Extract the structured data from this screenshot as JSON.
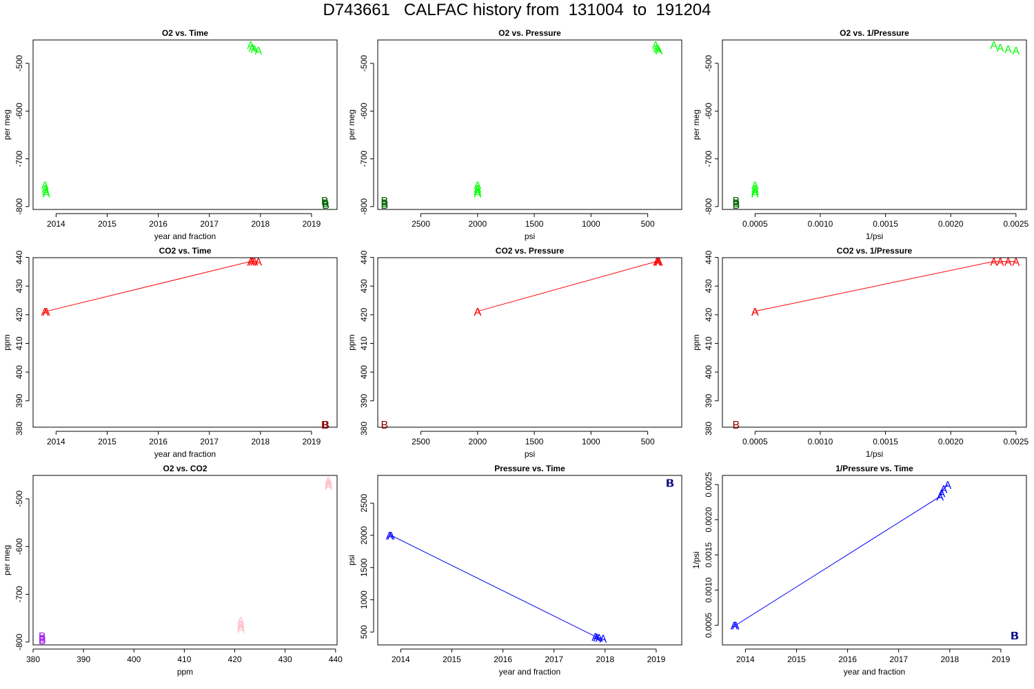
{
  "page": {
    "title": "D743661   CALFAC history from  131004  to  191204"
  },
  "colors": {
    "o2_A": "#00ff00",
    "o2_B": "#006400",
    "co2_A": "#ff0000",
    "co2_B": "#8b0000",
    "o2co2_A": "#ffc0cb",
    "o2co2_B": "#a020f0",
    "p_A": "#0000ff",
    "p_B": "#000080",
    "axis": "#000000"
  },
  "chart_data": [
    {
      "id": "o2-vs-time",
      "type": "scatter",
      "title": "O2 vs. Time",
      "xlabel": "year and fraction",
      "ylabel": "per meg",
      "xlim": [
        2013.55,
        2019.5
      ],
      "ylim": [
        -806,
        -451
      ],
      "xticks": [
        2014,
        2015,
        2016,
        2017,
        2018,
        2019
      ],
      "xtick_labels": [
        "2014",
        "2015",
        "2016",
        "2017",
        "2018",
        "2019"
      ],
      "yticks": [
        -800,
        -700,
        -600,
        -500
      ],
      "ytick_labels": [
        "-800",
        "-700",
        "-600",
        "-500"
      ],
      "series": [
        {
          "marker": "A",
          "color": "#00ff00",
          "connect": false,
          "x": [
            2013.78,
            2013.79,
            2013.8,
            2013.81,
            2017.81,
            2017.84,
            2017.88,
            2017.96
          ],
          "y": [
            -755,
            -762,
            -768,
            -772,
            -461,
            -467,
            -470,
            -473
          ]
        },
        {
          "marker": "B",
          "color": "#006400",
          "connect": false,
          "x": [
            2019.26,
            2019.27,
            2019.28
          ],
          "y": [
            -787,
            -792,
            -796
          ]
        }
      ]
    },
    {
      "id": "o2-vs-pressure",
      "type": "scatter",
      "title": "O2 vs. Pressure",
      "xlabel": "psi",
      "ylabel": "per meg",
      "xlim": [
        2880,
        200
      ],
      "ylim": [
        -806,
        -451
      ],
      "xticks": [
        2500,
        2000,
        1500,
        1000,
        500
      ],
      "xtick_labels": [
        "2500",
        "2000",
        "1500",
        "1000",
        "500"
      ],
      "yticks": [
        -800,
        -700,
        -600,
        -500
      ],
      "ytick_labels": [
        "-800",
        "-700",
        "-600",
        "-500"
      ],
      "series": [
        {
          "marker": "A",
          "color": "#00ff00",
          "connect": false,
          "x": [
            2000,
            2000,
            2000,
            2000,
            430,
            420,
            410,
            400
          ],
          "y": [
            -755,
            -762,
            -768,
            -772,
            -461,
            -467,
            -470,
            -473
          ]
        },
        {
          "marker": "B",
          "color": "#006400",
          "connect": false,
          "x": [
            2820,
            2820,
            2820
          ],
          "y": [
            -787,
            -792,
            -796
          ]
        }
      ]
    },
    {
      "id": "o2-vs-inv-pressure",
      "type": "scatter",
      "title": "O2 vs. 1/Pressure",
      "xlabel": "1/psi",
      "ylabel": "per meg",
      "xlim": [
        0.00025,
        0.00258
      ],
      "ylim": [
        -806,
        -451
      ],
      "xticks": [
        0.0005,
        0.001,
        0.0015,
        0.002,
        0.0025
      ],
      "xtick_labels": [
        "0.0005",
        "0.0010",
        "0.0015",
        "0.0020",
        "0.0025"
      ],
      "yticks": [
        -800,
        -700,
        -600,
        -500
      ],
      "ytick_labels": [
        "-800",
        "-700",
        "-600",
        "-500"
      ],
      "series": [
        {
          "marker": "A",
          "color": "#00ff00",
          "connect": false,
          "x": [
            0.0005,
            0.0005,
            0.0005,
            0.0005,
            0.00233,
            0.00238,
            0.00244,
            0.0025
          ],
          "y": [
            -755,
            -762,
            -768,
            -772,
            -461,
            -467,
            -470,
            -473
          ]
        },
        {
          "marker": "B",
          "color": "#006400",
          "connect": false,
          "x": [
            0.000355,
            0.000355,
            0.000355
          ],
          "y": [
            -787,
            -792,
            -796
          ]
        }
      ]
    },
    {
      "id": "co2-vs-time",
      "type": "line",
      "title": "CO2 vs. Time",
      "xlabel": "year and fraction",
      "ylabel": "ppm",
      "xlim": [
        2013.55,
        2019.5
      ],
      "ylim": [
        380.8,
        439.9
      ],
      "xticks": [
        2014,
        2015,
        2016,
        2017,
        2018,
        2019
      ],
      "xtick_labels": [
        "2014",
        "2015",
        "2016",
        "2017",
        "2018",
        "2019"
      ],
      "yticks": [
        390,
        400,
        410,
        420,
        430,
        440
      ],
      "ytick_labels": [
        "390",
        "400",
        "410",
        "420",
        "430",
        "440"
      ],
      "extra_yticks": [
        {
          "value": 380,
          "label": "380"
        }
      ],
      "series": [
        {
          "marker": "A",
          "color": "#ff0000",
          "connect": true,
          "x": [
            2013.78,
            2013.81,
            2017.81,
            2017.84,
            2017.88,
            2017.96
          ],
          "y": [
            421.2,
            421.2,
            438.6,
            438.6,
            438.6,
            438.6
          ]
        },
        {
          "marker": "B",
          "color": "#8b0000",
          "connect": false,
          "x": [
            2019.26,
            2019.28
          ],
          "y": [
            381.8,
            381.8
          ]
        }
      ]
    },
    {
      "id": "co2-vs-pressure",
      "type": "line",
      "title": "CO2 vs. Pressure",
      "xlabel": "psi",
      "ylabel": "ppm",
      "xlim": [
        2880,
        200
      ],
      "ylim": [
        380.8,
        439.9
      ],
      "xticks": [
        2500,
        2000,
        1500,
        1000,
        500
      ],
      "xtick_labels": [
        "2500",
        "2000",
        "1500",
        "1000",
        "500"
      ],
      "yticks": [
        390,
        400,
        410,
        420,
        430,
        440
      ],
      "ytick_labels": [
        "390",
        "400",
        "410",
        "420",
        "430",
        "440"
      ],
      "extra_yticks": [
        {
          "value": 380,
          "label": "380"
        }
      ],
      "series": [
        {
          "marker": "A",
          "color": "#ff0000",
          "connect": true,
          "x": [
            2000,
            2000,
            420,
            410,
            400
          ],
          "y": [
            421.2,
            421.2,
            438.6,
            438.6,
            438.6
          ]
        },
        {
          "marker": "B",
          "color": "#8b0000",
          "connect": false,
          "x": [
            2820
          ],
          "y": [
            381.8
          ]
        }
      ]
    },
    {
      "id": "co2-vs-inv-pressure",
      "type": "line",
      "title": "CO2 vs. 1/Pressure",
      "xlabel": "1/psi",
      "ylabel": "ppm",
      "xlim": [
        0.00025,
        0.00258
      ],
      "ylim": [
        380.8,
        439.9
      ],
      "xticks": [
        0.0005,
        0.001,
        0.0015,
        0.002,
        0.0025
      ],
      "xtick_labels": [
        "0.0005",
        "0.0010",
        "0.0015",
        "0.0020",
        "0.0025"
      ],
      "yticks": [
        390,
        400,
        410,
        420,
        430,
        440
      ],
      "ytick_labels": [
        "390",
        "400",
        "410",
        "420",
        "430",
        "440"
      ],
      "extra_yticks": [
        {
          "value": 380,
          "label": "380"
        }
      ],
      "series": [
        {
          "marker": "A",
          "color": "#ff0000",
          "connect": true,
          "x": [
            0.0005,
            0.0005,
            0.00233,
            0.00238,
            0.00244,
            0.0025
          ],
          "y": [
            421.2,
            421.2,
            438.6,
            438.6,
            438.6,
            438.6
          ]
        },
        {
          "marker": "B",
          "color": "#8b0000",
          "connect": false,
          "x": [
            0.000355
          ],
          "y": [
            381.8
          ]
        }
      ]
    },
    {
      "id": "o2-vs-co2",
      "type": "scatter",
      "title": "O2 vs. CO2",
      "xlabel": "ppm",
      "ylabel": "per meg",
      "xlim": [
        380,
        440.3
      ],
      "ylim": [
        -806,
        -451
      ],
      "xticks": [
        380,
        390,
        400,
        410,
        420,
        430,
        440
      ],
      "xtick_labels": [
        "380",
        "390",
        "400",
        "410",
        "420",
        "430",
        "440"
      ],
      "yticks": [
        -800,
        -700,
        -600,
        -500
      ],
      "ytick_labels": [
        "-800",
        "-700",
        "-600",
        "-500"
      ],
      "series": [
        {
          "marker": "A",
          "color": "#ffc0cb",
          "connect": false,
          "x": [
            421.2,
            421.2,
            421.2,
            421.2,
            438.6,
            438.6,
            438.6,
            438.6
          ],
          "y": [
            -755,
            -762,
            -768,
            -772,
            -461,
            -467,
            -470,
            -473
          ]
        },
        {
          "marker": "B",
          "color": "#a020f0",
          "connect": false,
          "x": [
            381.8,
            381.8,
            381.8
          ],
          "y": [
            -787,
            -792,
            -796
          ]
        }
      ]
    },
    {
      "id": "pressure-vs-time",
      "type": "line",
      "title": "Pressure vs. Time",
      "xlabel": "year and fraction",
      "ylabel": "psi",
      "xlim": [
        2013.55,
        2019.5
      ],
      "ylim": [
        300,
        2930
      ],
      "xticks": [
        2014,
        2015,
        2016,
        2017,
        2018,
        2019
      ],
      "xtick_labels": [
        "2014",
        "2015",
        "2016",
        "2017",
        "2018",
        "2019"
      ],
      "yticks": [
        500,
        1000,
        1500,
        2000,
        2500
      ],
      "ytick_labels": [
        "500",
        "1000",
        "1500",
        "2000",
        "2500"
      ],
      "series": [
        {
          "marker": "A",
          "color": "#0000ff",
          "connect": true,
          "x": [
            2013.78,
            2013.81,
            2017.81,
            2017.84,
            2017.88,
            2017.96
          ],
          "y": [
            2000,
            2000,
            430,
            420,
            410,
            400
          ]
        },
        {
          "marker": "B",
          "color": "#000080",
          "connect": false,
          "x": [
            2019.26,
            2019.28
          ],
          "y": [
            2820,
            2820
          ]
        }
      ]
    },
    {
      "id": "inv-pressure-vs-time",
      "type": "line",
      "title": "1/Pressure vs. Time",
      "xlabel": "year and fraction",
      "ylabel": "1/psi",
      "xlim": [
        2013.55,
        2019.5
      ],
      "ylim": [
        0.00022,
        0.00263
      ],
      "xticks": [
        2014,
        2015,
        2016,
        2017,
        2018,
        2019
      ],
      "xtick_labels": [
        "2014",
        "2015",
        "2016",
        "2017",
        "2018",
        "2019"
      ],
      "yticks": [
        0.0005,
        0.001,
        0.0015,
        0.002,
        0.0025
      ],
      "ytick_labels": [
        "0.0005",
        "0.0010",
        "0.0015",
        "0.0020",
        "0.0025"
      ],
      "series": [
        {
          "marker": "A",
          "color": "#0000ff",
          "connect": true,
          "x": [
            2013.78,
            2013.81,
            2017.81,
            2017.84,
            2017.88,
            2017.96
          ],
          "y": [
            0.0005,
            0.0005,
            0.00233,
            0.00238,
            0.00244,
            0.0025
          ]
        },
        {
          "marker": "B",
          "color": "#000080",
          "connect": false,
          "x": [
            2019.26,
            2019.28
          ],
          "y": [
            0.000355,
            0.000355
          ]
        }
      ]
    }
  ]
}
